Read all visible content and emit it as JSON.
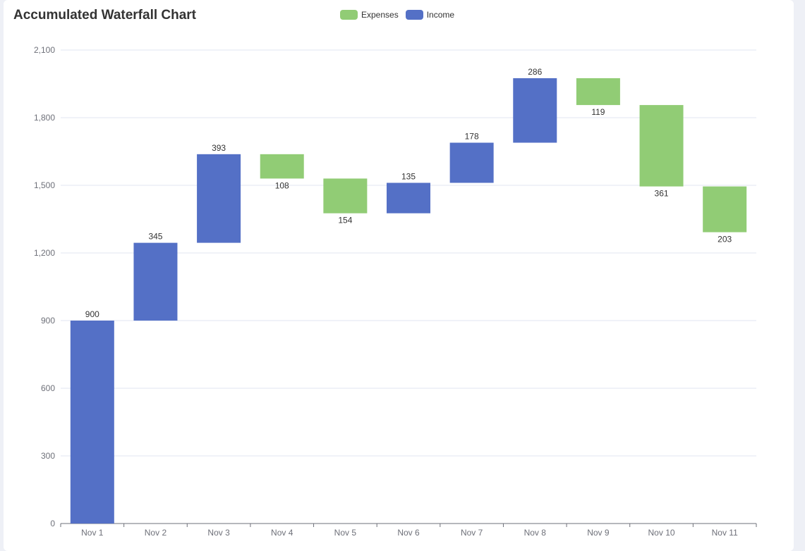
{
  "chart_data": {
    "type": "bar",
    "subtype": "waterfall",
    "title": "Accumulated Waterfall Chart",
    "categories": [
      "Nov 1",
      "Nov 2",
      "Nov 3",
      "Nov 4",
      "Nov 5",
      "Nov 6",
      "Nov 7",
      "Nov 8",
      "Nov 9",
      "Nov 10",
      "Nov 11"
    ],
    "series": [
      {
        "name": "Expenses",
        "values": [
          null,
          null,
          null,
          108,
          154,
          null,
          null,
          null,
          119,
          361,
          203
        ]
      },
      {
        "name": "Income",
        "values": [
          900,
          345,
          393,
          null,
          null,
          135,
          178,
          286,
          null,
          null,
          null
        ]
      }
    ],
    "ylim": [
      0,
      2100
    ],
    "yticks": [
      0,
      300,
      600,
      900,
      1200,
      1500,
      1800,
      2100
    ],
    "ytick_labels": [
      "0",
      "300",
      "600",
      "900",
      "1,200",
      "1,500",
      "1,800",
      "2,100"
    ],
    "xlabel": "",
    "ylabel": "",
    "grid": true,
    "legend_position": "top-center",
    "colors": {
      "Expenses": "#91cc75",
      "Income": "#5470c6"
    }
  }
}
